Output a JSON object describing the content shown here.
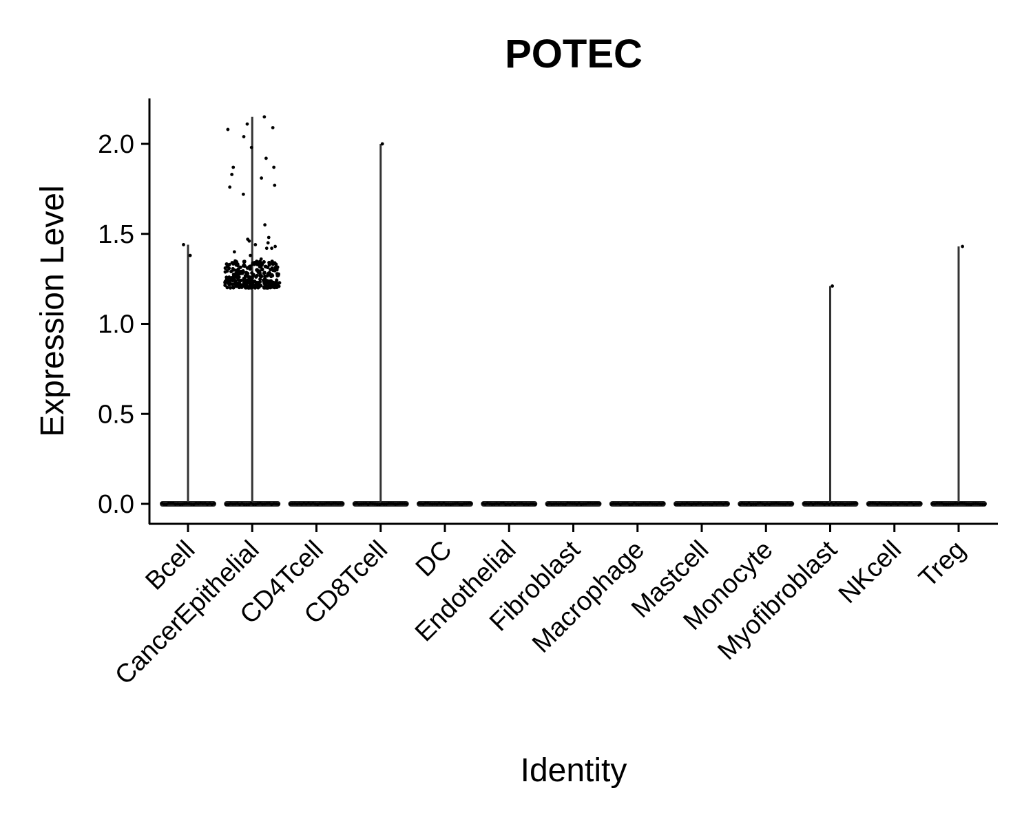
{
  "chart_data": {
    "type": "violin",
    "title": "POTEC",
    "xlabel": "Identity",
    "ylabel": "Expression Level",
    "ylim": [
      -0.1,
      2.25
    ],
    "yticks": [
      "0.0",
      "0.5",
      "1.0",
      "1.5",
      "2.0"
    ],
    "grid": false,
    "legend": "none",
    "categories": [
      "Bcell",
      "CancerEpithelial",
      "CD4Tcell",
      "CD8Tcell",
      "DC",
      "Endothelial",
      "Fibroblast",
      "Macrophage",
      "Mastcell",
      "Monocyte",
      "Myofibroblast",
      "NKcell",
      "Treg"
    ],
    "max_values": [
      1.44,
      2.15,
      0,
      2.0,
      0,
      0,
      0,
      0,
      0,
      0,
      1.21,
      0,
      1.43
    ],
    "points": [
      {
        "category": "Bcell",
        "values": [
          1.44,
          1.38
        ]
      },
      {
        "category": "CancerEpithelial",
        "values": [
          2.15,
          2.11,
          2.09,
          2.08,
          2.04,
          1.98,
          1.92,
          1.87,
          1.87,
          1.83,
          1.81,
          1.77,
          1.76,
          1.72,
          1.55,
          1.48,
          1.47,
          1.46,
          1.45,
          1.44,
          1.43,
          1.42,
          1.42,
          1.4,
          1.38,
          1.36,
          1.35,
          1.34,
          1.33,
          1.32,
          1.31,
          1.3,
          1.29,
          1.28,
          1.27,
          1.26,
          1.25,
          1.24,
          1.23,
          1.22,
          1.21,
          1.2
        ]
      },
      {
        "category": "CD8Tcell",
        "values": [
          2.0
        ]
      },
      {
        "category": "Myofibroblast",
        "values": [
          1.21
        ]
      },
      {
        "category": "Treg",
        "values": [
          1.43
        ]
      }
    ],
    "colors": {
      "line": "#333333",
      "point": "#000000",
      "axis": "#000000"
    }
  }
}
